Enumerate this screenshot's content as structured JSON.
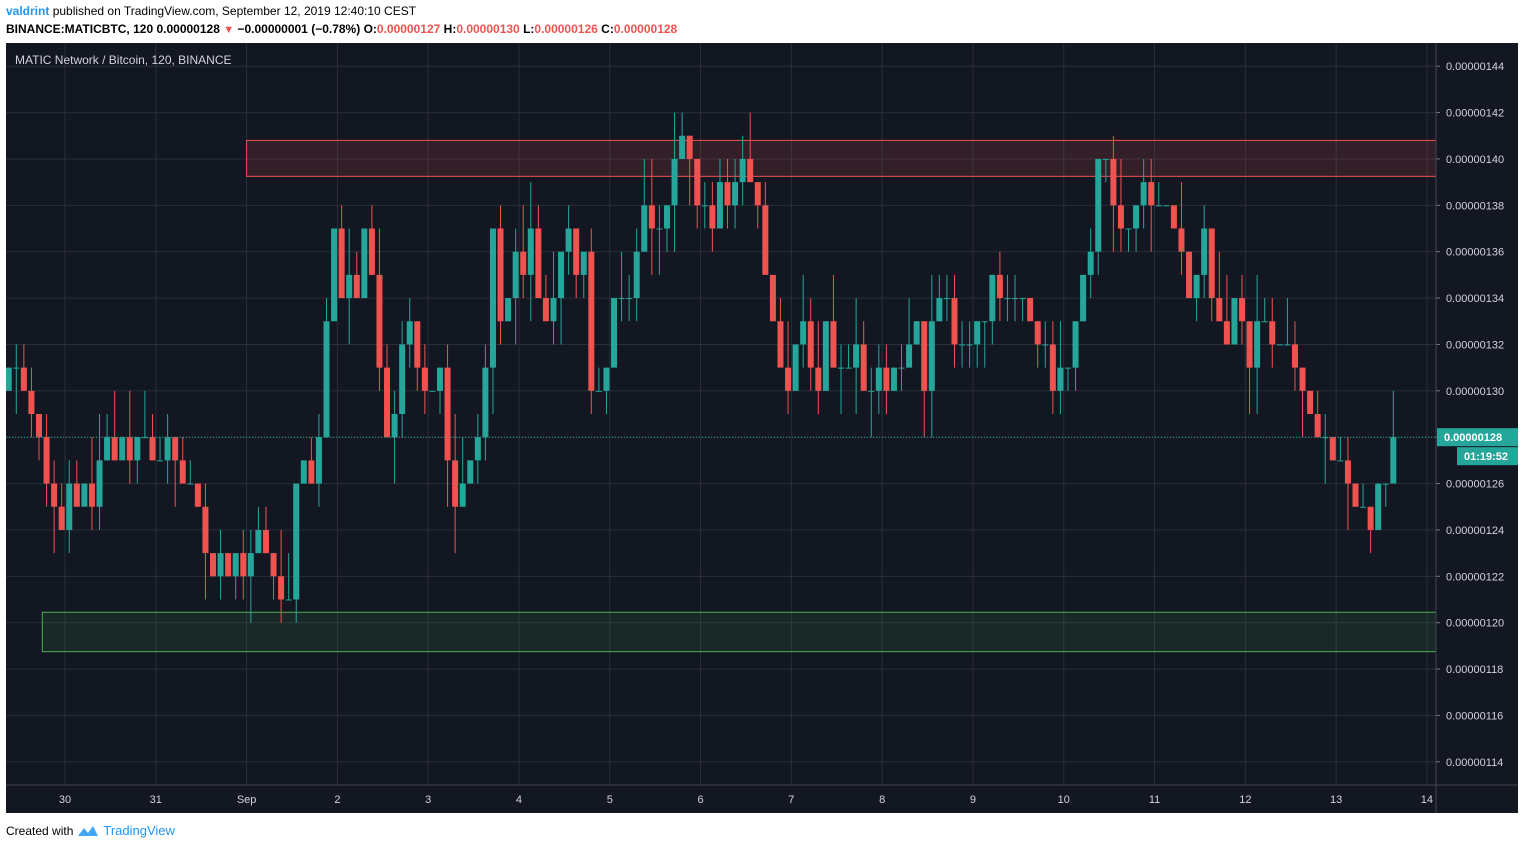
{
  "header": {
    "publisher": "valdrint",
    "published_text": "published on TradingView.com, September 12, 2019 12:40:10 CEST",
    "symbol": "BINANCE:MATICBTC, 120",
    "last": "0.00000128",
    "change": "−0.00000001 (−0.78%)",
    "o_label": "O:",
    "o_value": "0.00000127",
    "h_label": "H:",
    "h_value": "0.00000130",
    "l_label": "L:",
    "l_value": "0.00000126",
    "c_label": "C:",
    "c_value": "0.00000128"
  },
  "footer": {
    "created_with": "Created with",
    "brand": "TradingView"
  },
  "colors": {
    "background": "#131722",
    "up": "#26a69a",
    "down": "#ef5350",
    "grid": "#2a2e39",
    "text": "#d1d4dc",
    "price_line": "#26a69a"
  },
  "chart_data": {
    "type": "candlestick",
    "title": "MATIC Network / Bitcoin, 120, BINANCE",
    "x_ticks": [
      "30",
      "31",
      "Sep",
      "2",
      "3",
      "4",
      "5",
      "6",
      "7",
      "8",
      "9",
      "10",
      "11",
      "12",
      "13",
      "14"
    ],
    "y_ticks": [
      "0.00000144",
      "0.00000142",
      "0.00000140",
      "0.00000138",
      "0.00000136",
      "0.00000134",
      "0.00000132",
      "0.00000130",
      "0.00000128",
      "0.00000126",
      "0.00000124",
      "0.00000122",
      "0.00000120",
      "0.00000118",
      "0.00000116",
      "0.00000114"
    ],
    "ylim": [
      1.13e-06,
      1.45e-06
    ],
    "xlim_days": [
      -0.65,
      15.1
    ],
    "current_price": "0.00000128",
    "countdown": "01:19:52",
    "grid": true,
    "zones": [
      {
        "name": "resistance",
        "x0": 2.0,
        "x1": 15.1,
        "low": 1.3925e-06,
        "high": 1.408e-06,
        "color": "#ef5350"
      },
      {
        "name": "support",
        "x0": -0.25,
        "x1": 15.1,
        "low": 1.1875e-06,
        "high": 1.2045e-06,
        "color": "#4caf50"
      }
    ],
    "closes_e8": [
      131,
      131,
      130,
      129,
      128,
      126,
      125,
      124,
      126,
      125,
      126,
      125,
      127,
      128,
      127,
      128,
      127,
      128,
      128,
      127,
      127,
      128,
      127,
      126,
      126,
      125,
      123,
      122,
      123,
      122,
      123,
      122,
      123,
      124,
      123,
      122,
      121,
      121,
      126,
      127,
      126,
      128,
      133,
      137,
      134,
      135,
      134,
      137,
      135,
      131,
      128,
      129,
      132,
      133,
      131,
      130,
      130,
      131,
      127,
      125,
      126,
      127,
      128,
      131,
      137,
      133,
      134,
      136,
      135,
      137,
      134,
      133,
      134,
      136,
      137,
      135,
      136,
      130,
      130,
      131,
      134,
      134,
      134,
      136,
      138,
      137,
      137,
      138,
      140,
      141,
      140,
      138,
      138,
      137,
      139,
      138,
      139,
      140,
      139,
      138,
      135,
      133,
      131,
      130,
      132,
      133,
      131,
      130,
      133,
      131,
      131,
      131,
      132,
      130,
      130,
      131,
      130,
      131,
      131,
      132,
      133,
      130,
      133,
      134,
      134,
      132,
      132,
      132,
      133,
      133,
      135,
      134,
      134,
      134,
      134,
      133,
      132,
      132,
      130,
      131,
      131,
      133,
      135,
      136,
      140,
      140,
      138,
      137,
      137,
      138,
      139,
      138,
      138,
      138,
      137,
      136,
      134,
      135,
      137,
      134,
      133,
      132,
      134,
      133,
      131,
      133,
      133,
      132,
      132,
      132,
      131,
      130,
      129,
      128,
      128,
      127,
      127,
      126,
      125,
      125,
      124,
      126,
      126,
      128
    ]
  }
}
